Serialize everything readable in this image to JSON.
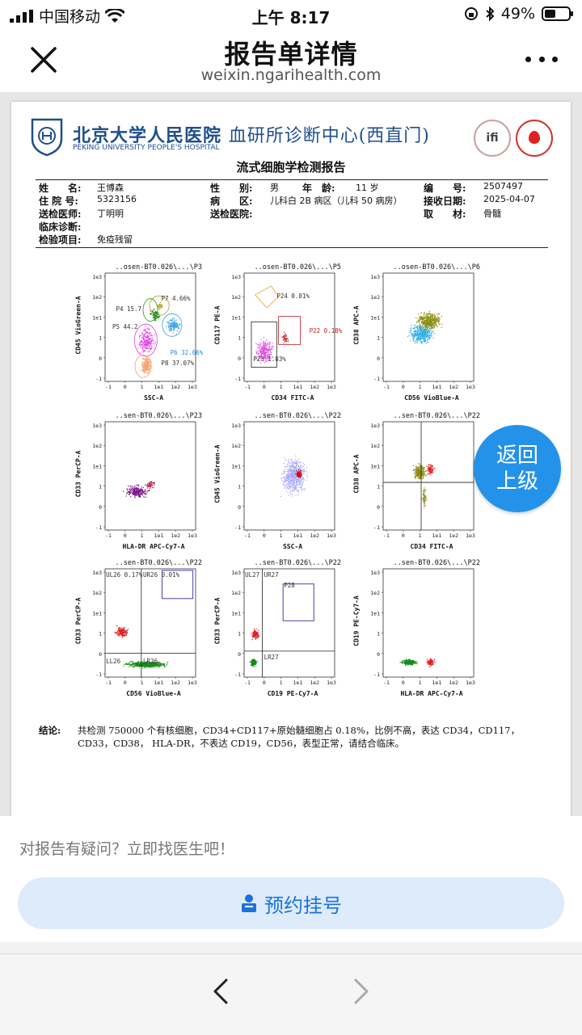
{
  "status_bar": {
    "carrier": "中国移动",
    "time": "上午 8:17",
    "battery": "49%",
    "battery_level": 0.49
  },
  "nav": {
    "title": "报告单详情",
    "subtitle": "weixin.ngarihealth.com"
  },
  "report": {
    "hospital_name": "北京大学人民医院",
    "department": "血研所诊断中心(西直门)",
    "hospital_en": "PEKING UNIVERSITY PEOPLE'S HOSPITAL",
    "logo_right_text": "ifi",
    "title": "流式细胞学检测报告",
    "fields": {
      "name_label": "姓　　名:",
      "name": "王博森",
      "sex_label": "性　　别:",
      "sex": "男",
      "age_label": "年　龄:",
      "age": "11 岁",
      "no_label": "编　　号:",
      "no": "2507497",
      "inpatient_label": "住 院 号:",
      "inpatient": "5323156",
      "ward_label": "病　　区:",
      "ward": "儿科白 2B 病区（儿科 50 病房）",
      "recv_label": "接收日期:",
      "recv": "2025-04-07",
      "doctor_label": "送检医师:",
      "doctor": "丁明明",
      "hospital_label": "送检医院:",
      "hospital": "",
      "material_label": "取　　材:",
      "material": "骨髓",
      "diagnosis_label": "临床诊断:",
      "diagnosis": "",
      "item_label": "检验项目:",
      "item": "免疫残留"
    },
    "conclusion_label": "结论:",
    "conclusion": "共检测 750000 个有核细胞，CD34+CD117+原始髓细胞占 0.18%，比例不高，表达 CD34，CD117，CD33，CD38， HLA-DR，不表达 CD19，CD56，表型正常，请结合临床。"
  },
  "plots": [
    {
      "title": "..osen-BT0.026\\...\\P3",
      "xlabel": "SSC-A",
      "ylabel": "CD45 VioGreen-A",
      "gates": [
        {
          "name": "P7",
          "value": "4.66%"
        },
        {
          "name": "P4",
          "value": "15.7"
        },
        {
          "name": "P5",
          "value": "44.2"
        },
        {
          "name": "P6",
          "value": "32.66%"
        },
        {
          "name": "P8",
          "value": "37.07%"
        }
      ]
    },
    {
      "title": "..osen-BT0.026\\...\\P5",
      "xlabel": "CD34 FITC-A",
      "ylabel": "CD117 PE-A",
      "gates": [
        {
          "name": "P24",
          "value": "0.01%"
        },
        {
          "name": "P22",
          "value": "0.18%"
        },
        {
          "name": "P23",
          "value": "1.03%"
        }
      ]
    },
    {
      "title": "..osen-BT0.026\\...\\P6",
      "xlabel": "CD56 VioBlue-A",
      "ylabel": "CD38 APC-A",
      "gates": []
    },
    {
      "title": "..sen-BT0.026\\...\\P23",
      "xlabel": "HLA-DR APC-Cy7-A",
      "ylabel": "CD33 PerCP-A",
      "gates": []
    },
    {
      "title": "..sen-BT0.026\\...\\P22",
      "xlabel": "SSC-A",
      "ylabel": "CD45 VioGreen-A",
      "gates": []
    },
    {
      "title": "..sen-BT0.026\\...\\P22",
      "xlabel": "CD34 FITC-A",
      "ylabel": "CD38 APC-A",
      "gates": []
    },
    {
      "title": "..sen-BT0.026\\...\\P22",
      "xlabel": "CD56 VioBlue-A",
      "ylabel": "CD33 PerCP-A",
      "gates": [
        {
          "name": "UL26",
          "value": "0.17%"
        },
        {
          "name": "UR26",
          "value": "0.01%"
        },
        {
          "name": "LL26",
          "value": ""
        },
        {
          "name": "LR26",
          "value": ""
        }
      ]
    },
    {
      "title": "..sen-BT0.026\\...\\P22",
      "xlabel": "CD19 PE-Cy7-A",
      "ylabel": "CD33 PerCP-A",
      "gates": [
        {
          "name": "UL27",
          "value": ""
        },
        {
          "name": "UR27",
          "value": ""
        },
        {
          "name": "P28",
          "value": ""
        },
        {
          "name": "LR27",
          "value": ""
        }
      ]
    },
    {
      "title": "..sen-BT0.026\\...\\P22",
      "xlabel": "HLA-DR APC-Cy7-A",
      "ylabel": "CD19 PE-Cy7-A",
      "gates": []
    }
  ],
  "axis_ticks": {
    "x": [
      "-1",
      "0",
      "1",
      "1e1",
      "1e2",
      "1e3"
    ],
    "y": [
      "1e3",
      "1e2",
      "1e1",
      "1",
      "0",
      "-1"
    ]
  },
  "back_button": {
    "line1": "返回",
    "line2": "上级"
  },
  "bottom": {
    "question": "对报告有疑问？立即找医生吧！",
    "appointment": "预约挂号"
  },
  "colors": {
    "accent": "#1a73d9",
    "back_button": "#2592e9",
    "hospital_blue": "#1e4e8c"
  },
  "icons": [
    "signal-icon",
    "wifi-icon",
    "lock-rotation-icon",
    "bluetooth-icon",
    "battery-icon",
    "close-icon",
    "more-icon",
    "calendar-person-icon",
    "back-arrow-icon",
    "forward-arrow-icon"
  ]
}
